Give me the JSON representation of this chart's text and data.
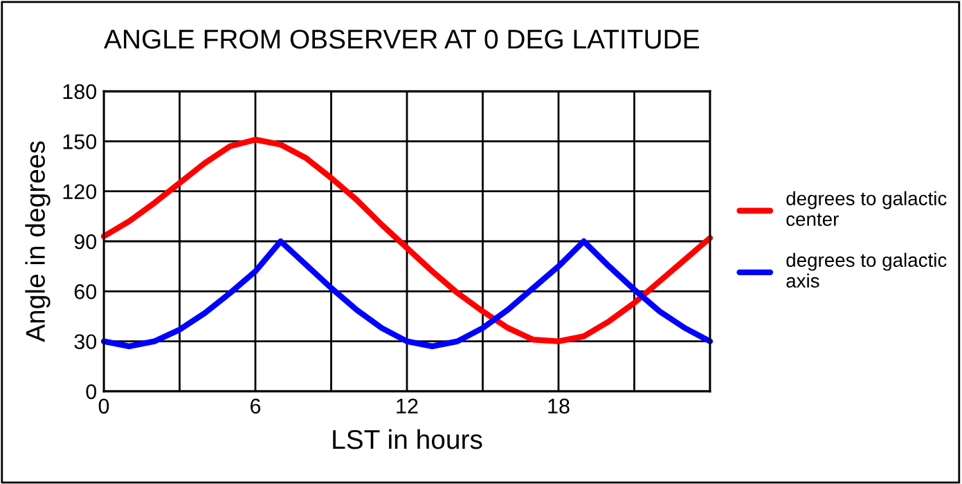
{
  "chart_data": {
    "type": "line",
    "title": "ANGLE FROM OBSERVER AT 0 DEG LATITUDE",
    "xlabel": "LST in hours",
    "ylabel": "Angle in degrees",
    "x": [
      0,
      1,
      2,
      3,
      4,
      5,
      6,
      7,
      8,
      9,
      10,
      11,
      12,
      13,
      14,
      15,
      16,
      17,
      18,
      19,
      20,
      21,
      22,
      23,
      24
    ],
    "series": [
      {
        "name": "degrees to galactic\ncenter",
        "color": "#ff0000",
        "values": [
          93,
          102,
          113,
          125,
          137,
          147,
          151,
          148,
          140,
          128,
          115,
          100,
          86,
          72,
          59,
          48,
          38,
          31,
          30,
          33,
          42,
          53,
          66,
          79,
          92
        ]
      },
      {
        "name": "degrees to galactic\naxis",
        "color": "#0000ff",
        "values": [
          30,
          27,
          30,
          37,
          47,
          59,
          72,
          90,
          76,
          62,
          49,
          38,
          30,
          27,
          30,
          38,
          49,
          62,
          75,
          90,
          75,
          61,
          48,
          38,
          30
        ]
      }
    ],
    "xlim": [
      0,
      24
    ],
    "xticks": [
      0,
      6,
      12,
      18
    ],
    "ylim": [
      0,
      180
    ],
    "yticks": [
      0,
      30,
      60,
      90,
      120,
      150,
      180
    ],
    "grid": true,
    "legend": "right",
    "marker": "none",
    "line_style": "solid"
  }
}
